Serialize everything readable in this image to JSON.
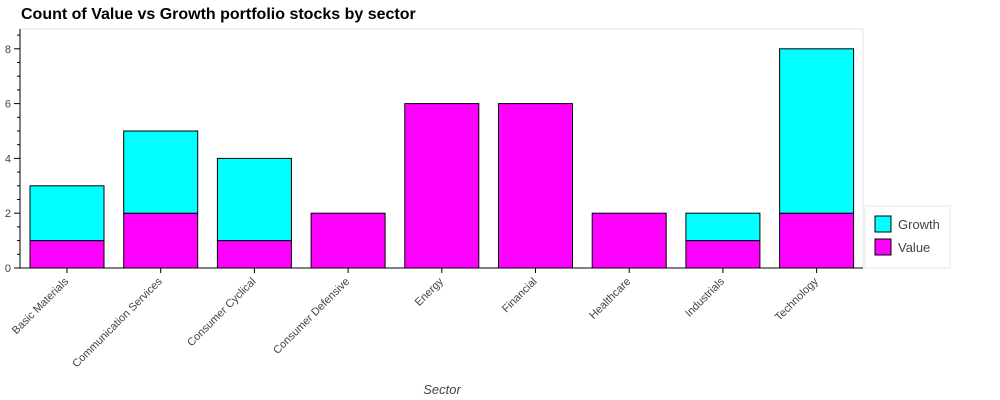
{
  "chart_data": {
    "type": "bar",
    "stacked": true,
    "title": "Count of Value vs Growth portfolio stocks by sector",
    "xlabel": "Sector",
    "ylabel": "",
    "categories": [
      "Basic Materials",
      "Communication Services",
      "Consumer Cyclical",
      "Consumer Defensive",
      "Energy",
      "Financial",
      "Healthcare",
      "Industrials",
      "Technology"
    ],
    "series": [
      {
        "name": "Value",
        "color": "#ff00ff",
        "values": [
          1,
          2,
          1,
          2,
          6,
          6,
          2,
          1,
          2
        ]
      },
      {
        "name": "Growth",
        "color": "#00ffff",
        "values": [
          2,
          3,
          3,
          0,
          0,
          0,
          0,
          1,
          6
        ]
      }
    ],
    "ylim": [
      0,
      8.7
    ],
    "yticks": [
      0,
      2,
      4,
      6,
      8
    ],
    "grid": false,
    "legend_position": "right",
    "legend_order": [
      "Growth",
      "Value"
    ]
  }
}
